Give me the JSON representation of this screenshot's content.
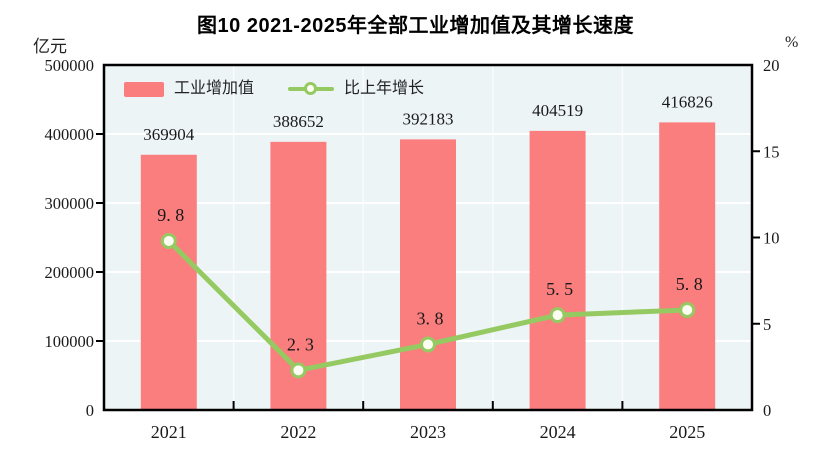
{
  "title": "图10  2021-2025年全部工业增加值及其增长速度",
  "left_axis": {
    "unit": "亿元",
    "tick_labels": [
      "0",
      "100000",
      "200000",
      "300000",
      "400000",
      "500000"
    ],
    "min": 0,
    "max": 500000,
    "step": 100000
  },
  "right_axis": {
    "unit": "%",
    "tick_labels": [
      "0",
      "5",
      "10",
      "15",
      "20"
    ],
    "min": 0,
    "max": 20,
    "step": 5
  },
  "legend": {
    "bar_label": "工业增加值",
    "line_label": "比上年增长"
  },
  "colors": {
    "bar": "#FB7E7E",
    "line": "#95C961",
    "marker_fill": "#FDFDF2",
    "plot_bg": "#EDF4F6",
    "grid": "#FFFFFF",
    "axis": "#000000",
    "text": "#1a1a1a"
  },
  "chart_data": {
    "type": "bar+line",
    "title": "图10  2021-2025年全部工业增加值及其增长速度",
    "categories": [
      "2021",
      "2022",
      "2023",
      "2024",
      "2025"
    ],
    "series": [
      {
        "name": "工业增加值",
        "type": "bar",
        "axis": "left",
        "unit": "亿元",
        "values": [
          369904,
          388652,
          392183,
          404519,
          416826
        ],
        "labels": [
          "369904",
          "388652",
          "392183",
          "404519",
          "416826"
        ],
        "color": "#FB7E7E"
      },
      {
        "name": "比上年增长",
        "type": "line",
        "axis": "right",
        "unit": "%",
        "values": [
          9.8,
          2.3,
          3.8,
          5.5,
          5.8
        ],
        "labels": [
          "9. 8",
          "2. 3",
          "3. 8",
          "5. 5",
          "5. 8"
        ],
        "color": "#95C961"
      }
    ],
    "left_ylim": [
      0,
      500000
    ],
    "right_ylim": [
      0,
      20
    ],
    "grid": true,
    "grid_color": "#FFFFFF",
    "plot_bg": "#EDF4F6",
    "legend_position": "top-left"
  }
}
